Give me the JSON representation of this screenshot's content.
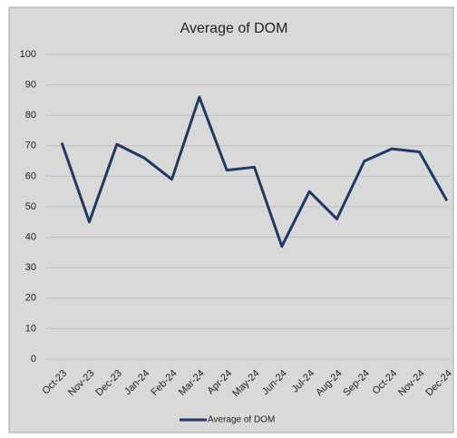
{
  "chart_data": {
    "type": "line",
    "title": "Average of DOM",
    "categories": [
      "Oct-23",
      "Nov-23",
      "Dec-23",
      "Jan-24",
      "Feb-24",
      "Mar-24",
      "Apr-24",
      "May-24",
      "Jun-24",
      "Jul-24",
      "Aug-24",
      "Sep-24",
      "Oct-24",
      "Nov-24",
      "Dec-24"
    ],
    "series": [
      {
        "name": "Average of DOM",
        "color": "#1f3864",
        "values": [
          71,
          45,
          70.5,
          66,
          59,
          86,
          62,
          63,
          37,
          55,
          46,
          65,
          69,
          68,
          52
        ]
      }
    ],
    "ylim": [
      0,
      100
    ],
    "yticks": [
      0,
      10,
      20,
      30,
      40,
      50,
      60,
      70,
      80,
      90,
      100
    ],
    "grid": true,
    "legend": "bottom"
  }
}
